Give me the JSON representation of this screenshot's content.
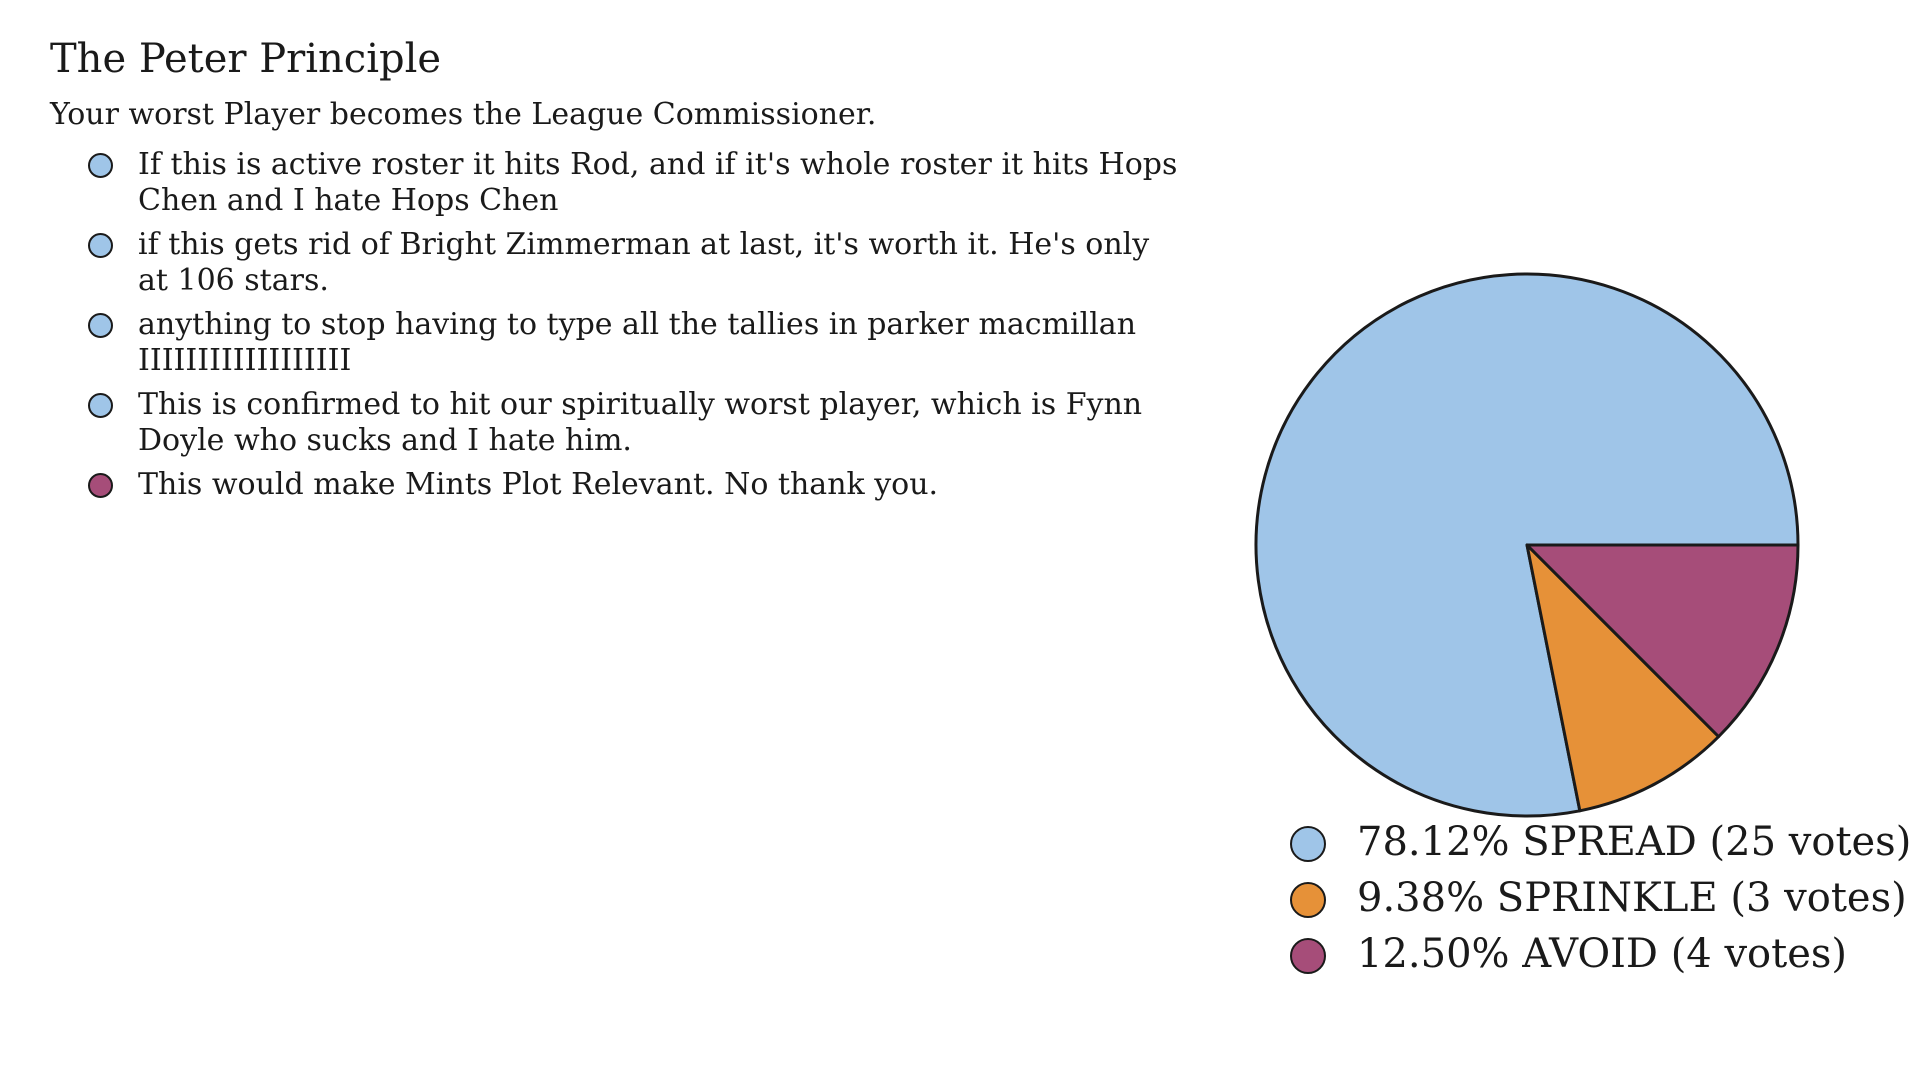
{
  "title": "The Peter Principle",
  "description": "Your worst Player becomes the League Commissioner.",
  "comments": [
    {
      "text": "If this is active roster it hits Rod, and if it's whole roster it hits Hops Chen and I hate Hops Chen",
      "vote": "SPREAD"
    },
    {
      "text": "if this gets rid of Bright Zimmerman at last, it's worth it. He's only at 106 stars.",
      "vote": "SPREAD"
    },
    {
      "text": "anything to stop having to type all the tallies in parker macmillan IIIIIIIIIIIIIIIIII",
      "vote": "SPREAD"
    },
    {
      "text": "This is confirmed to hit our spiritually worst player, which is Fynn Doyle who sucks and I hate him.",
      "vote": "SPREAD"
    },
    {
      "text": "This would make Mints Plot Relevant. No thank you.",
      "vote": "AVOID"
    }
  ],
  "colors": {
    "SPREAD": "#9fc5e8",
    "SPRINKLE": "#e69138",
    "AVOID": "#a64d79"
  },
  "chart_data": {
    "type": "pie",
    "title": "",
    "slices": [
      {
        "label": "SPREAD",
        "votes": 25,
        "percent": 78.12,
        "color": "#9fc5e8",
        "legend": "78.12% SPREAD (25 votes)"
      },
      {
        "label": "SPRINKLE",
        "votes": 3,
        "percent": 9.38,
        "color": "#e69138",
        "legend": "9.38% SPRINKLE (3 votes)"
      },
      {
        "label": "AVOID",
        "votes": 4,
        "percent": 12.5,
        "color": "#a64d79",
        "legend": "12.50% AVOID (4 votes)"
      }
    ],
    "start_angle": "3 o'clock",
    "direction": "counter-clockwise",
    "legend_position": "bottom"
  }
}
